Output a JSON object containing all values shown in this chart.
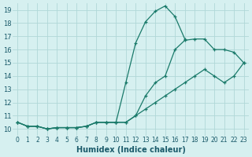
{
  "xlabel": "Humidex (Indice chaleur)",
  "bg_color": "#d6f0f0",
  "grid_color": "#b0d8d8",
  "line_color": "#1a7a6a",
  "xlim": [
    -0.5,
    23.5
  ],
  "ylim": [
    9.5,
    19.5
  ],
  "xticks": [
    0,
    1,
    2,
    3,
    4,
    5,
    6,
    7,
    8,
    9,
    10,
    11,
    12,
    13,
    14,
    15,
    16,
    17,
    18,
    19,
    20,
    21,
    22,
    23
  ],
  "yticks": [
    10,
    11,
    12,
    13,
    14,
    15,
    16,
    17,
    18,
    19
  ],
  "line1_x": [
    0,
    1,
    2,
    3,
    4,
    5,
    6,
    7,
    8,
    9,
    10,
    11,
    12,
    13,
    14,
    15,
    16,
    17
  ],
  "line1_y": [
    10.5,
    10.2,
    10.2,
    10.0,
    10.1,
    10.1,
    10.1,
    10.2,
    10.5,
    10.5,
    10.5,
    13.5,
    16.5,
    18.1,
    18.9,
    19.3,
    18.5,
    16.8
  ],
  "line2_x": [
    0,
    1,
    2,
    3,
    4,
    5,
    6,
    7,
    8,
    9,
    10,
    11,
    12,
    13,
    14,
    15,
    16,
    17,
    18,
    19,
    20,
    21,
    22,
    23
  ],
  "line2_y": [
    10.5,
    10.2,
    10.2,
    10.0,
    10.1,
    10.1,
    10.1,
    10.2,
    10.5,
    10.5,
    10.5,
    10.5,
    11.0,
    12.5,
    13.5,
    14.0,
    16.0,
    16.7,
    16.8,
    16.8,
    16.0,
    16.0,
    15.8,
    15.0
  ],
  "line3_x": [
    0,
    1,
    2,
    3,
    4,
    5,
    6,
    7,
    8,
    9,
    10,
    11,
    12,
    13,
    14,
    15,
    16,
    17,
    18,
    19,
    20,
    21,
    22,
    23
  ],
  "line3_y": [
    10.5,
    10.2,
    10.2,
    10.0,
    10.1,
    10.1,
    10.1,
    10.2,
    10.5,
    10.5,
    10.5,
    10.5,
    11.0,
    11.5,
    12.0,
    12.5,
    13.0,
    13.5,
    14.0,
    14.5,
    14.0,
    13.5,
    14.0,
    15.0
  ]
}
